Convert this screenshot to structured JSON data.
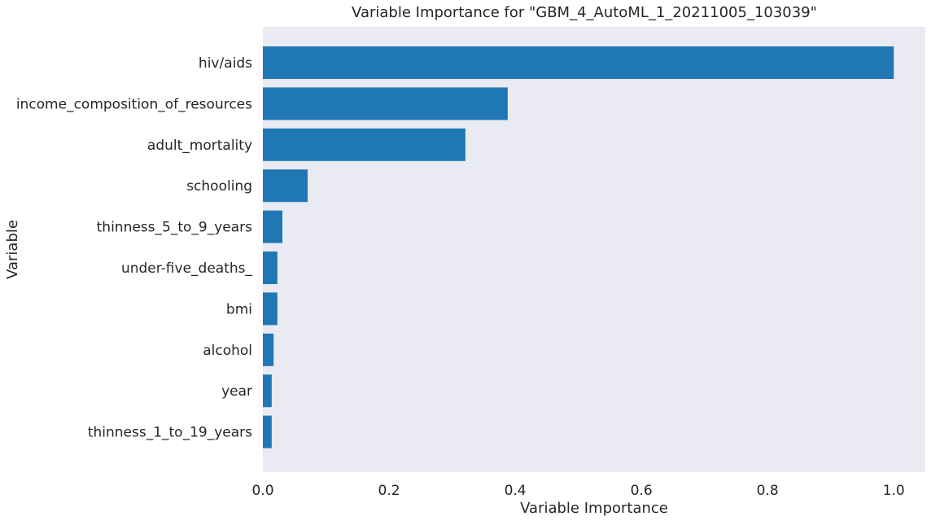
{
  "chart_data": {
    "type": "bar",
    "orientation": "horizontal",
    "title": "Variable Importance for \"GBM_4_AutoML_1_20211005_103039\"",
    "xlabel": "Variable Importance",
    "ylabel": "Variable",
    "xlim": [
      0,
      1.05
    ],
    "xticks": [
      0.0,
      0.2,
      0.4,
      0.6,
      0.8,
      1.0
    ],
    "xtick_labels": [
      "0.0",
      "0.2",
      "0.4",
      "0.6",
      "0.8",
      "1.0"
    ],
    "categories": [
      "hiv/aids",
      "income_composition_of_resources",
      "adult_mortality",
      "schooling",
      "thinness_5_to_9_years",
      "under-five_deaths_",
      "bmi",
      "alcohol",
      "year",
      "thinness_1_to_19_years"
    ],
    "values": [
      1.0,
      0.388,
      0.321,
      0.071,
      0.031,
      0.023,
      0.023,
      0.017,
      0.014,
      0.014
    ],
    "grid": false,
    "bar_color": "#1f77b4",
    "background_color": "#eaeaf2"
  }
}
